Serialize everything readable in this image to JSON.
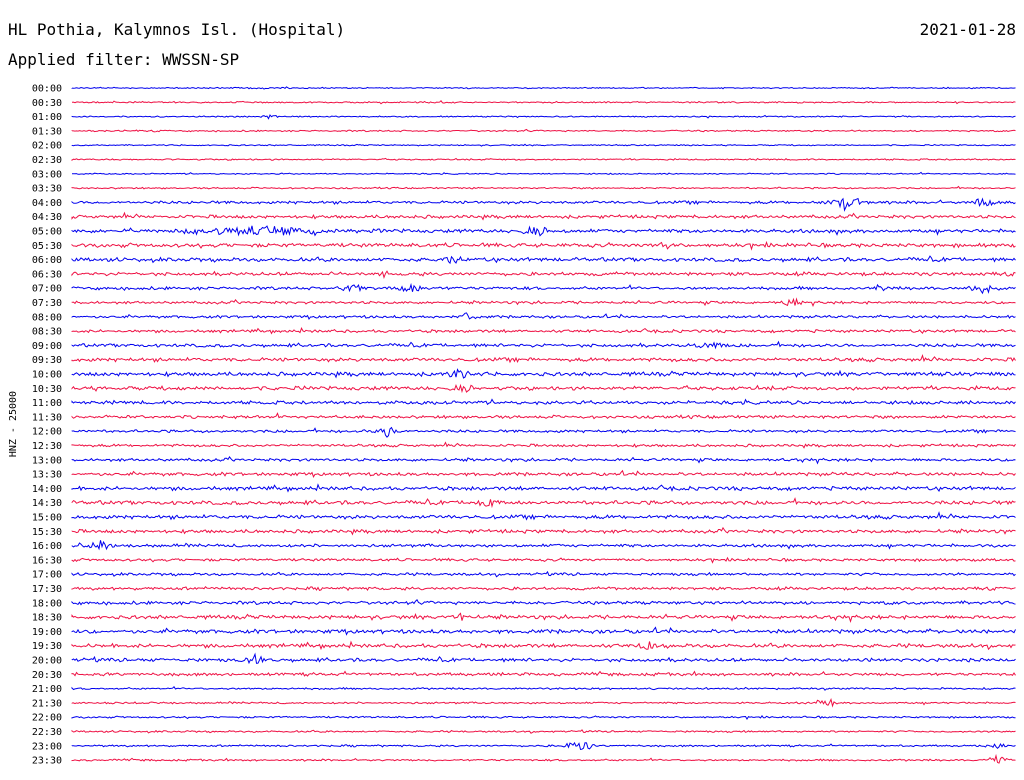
{
  "station_title": "HL Pothia, Kalymnos Isl. (Hospital)",
  "date": "2021-01-28",
  "filter_line": "Applied filter: WWSSN-SP",
  "chart_data": {
    "type": "line",
    "ylabel": "HNZ - 25000",
    "colors": [
      "#0000ee",
      "#ee1144"
    ],
    "trace_labels": [
      "00:00",
      "00:30",
      "01:00",
      "01:30",
      "02:00",
      "02:30",
      "03:00",
      "03:30",
      "04:00",
      "04:30",
      "05:00",
      "05:30",
      "06:00",
      "06:30",
      "07:00",
      "07:30",
      "08:00",
      "08:30",
      "09:00",
      "09:30",
      "10:00",
      "10:30",
      "11:00",
      "11:30",
      "12:00",
      "12:30",
      "13:00",
      "13:30",
      "14:00",
      "14:30",
      "15:00",
      "15:30",
      "16:00",
      "16:30",
      "17:00",
      "17:30",
      "18:00",
      "18:30",
      "19:00",
      "19:30",
      "20:00",
      "20:30",
      "21:00",
      "21:30",
      "22:00",
      "22:30",
      "23:00",
      "23:30"
    ]
  }
}
